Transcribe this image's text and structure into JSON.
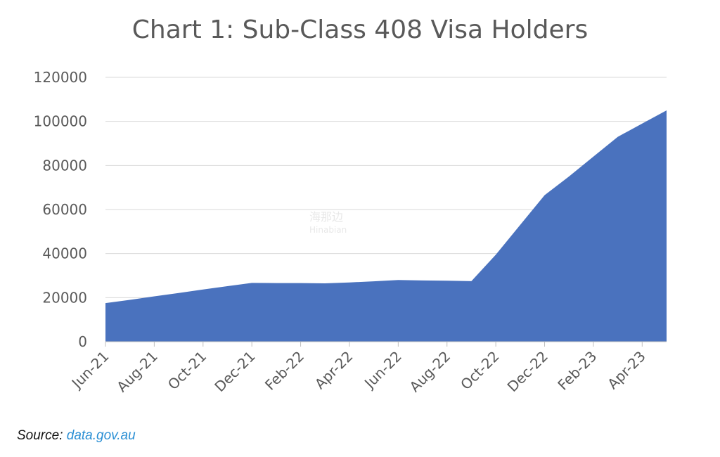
{
  "chart_data": {
    "type": "area",
    "title": "Chart 1: Sub-Class 408 Visa Holders",
    "xlabel": "",
    "ylabel": "",
    "x": [
      "Jun-21",
      "Jul-21",
      "Aug-21",
      "Sep-21",
      "Oct-21",
      "Nov-21",
      "Dec-21",
      "Jan-22",
      "Feb-22",
      "Mar-22",
      "Apr-22",
      "May-22",
      "Jun-22",
      "Jul-22",
      "Aug-22",
      "Sep-22",
      "Oct-22",
      "Nov-22",
      "Dec-22",
      "Jan-23",
      "Feb-23",
      "Mar-23",
      "Apr-23",
      "May-23"
    ],
    "values": [
      17500,
      19000,
      20600,
      22100,
      23700,
      25200,
      26700,
      26600,
      26600,
      26500,
      26900,
      27400,
      28000,
      27800,
      27700,
      27500,
      39500,
      53000,
      66500,
      75000,
      84000,
      93000,
      99000,
      105000
    ],
    "tick_labels": [
      "Jun-21",
      "Aug-21",
      "Oct-21",
      "Dec-21",
      "Feb-22",
      "Apr-22",
      "Jun-22",
      "Aug-22",
      "Oct-22",
      "Dec-22",
      "Feb-23",
      "Apr-23"
    ],
    "ylim": [
      0,
      120000
    ],
    "yticks": [
      0,
      20000,
      40000,
      60000,
      80000,
      100000,
      120000
    ],
    "grid": true,
    "legend": "none",
    "color": "#4a72be"
  },
  "source": {
    "label": "Source:",
    "link_text": "data.gov.au",
    "link_color": "#2a8fd4"
  },
  "watermark": {
    "line1": "海那边",
    "line2": "Hinabian"
  }
}
